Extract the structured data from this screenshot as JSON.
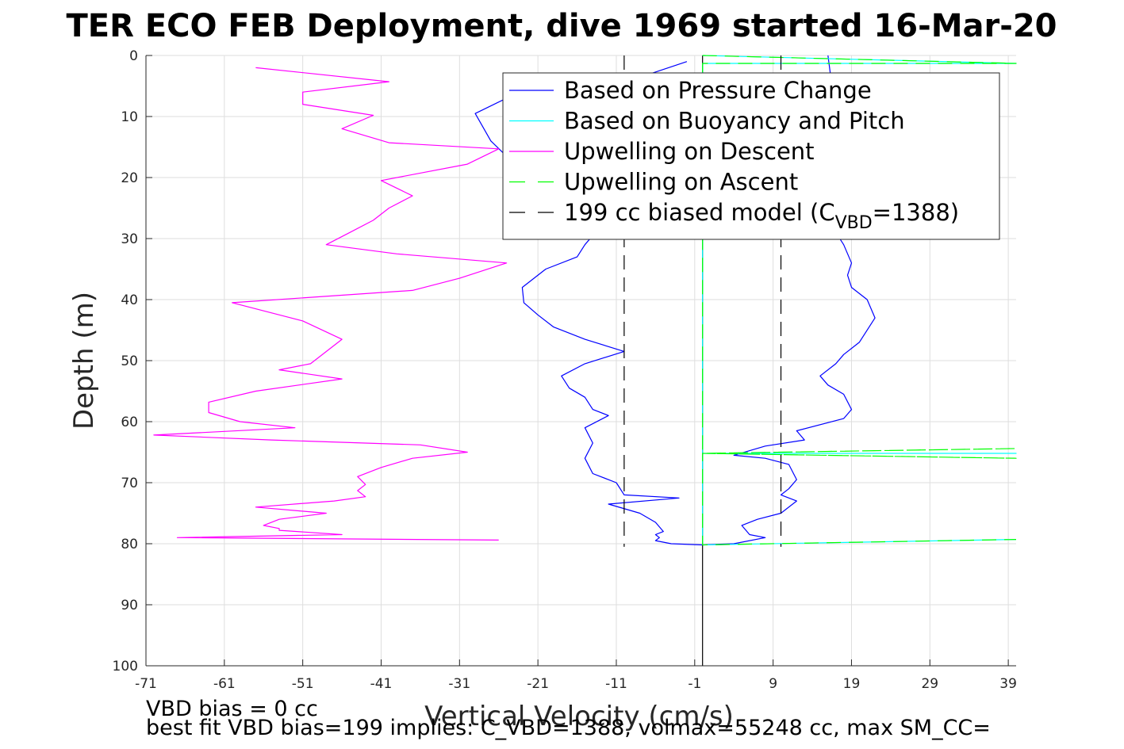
{
  "chart_data": {
    "type": "line",
    "title": "TER ECO FEB Deployment, dive 1969 started 16-Mar-20",
    "xlabel": "Vertical Velocity (cm/s)",
    "ylabel": "Depth (m)",
    "xlim": [
      -71,
      40
    ],
    "ylim": [
      0,
      100
    ],
    "y_reversed": true,
    "grid": true,
    "xticks": [
      -71,
      -61,
      -51,
      -41,
      -31,
      -21,
      -11,
      -1,
      9,
      19,
      29,
      39
    ],
    "yticks": [
      0,
      10,
      20,
      30,
      40,
      50,
      60,
      70,
      80,
      90,
      100
    ],
    "xtick_labels": [
      "-71",
      "-61",
      "-51",
      "-41",
      "-31",
      "-21",
      "-11",
      "-1",
      "9",
      "19",
      "29",
      "39"
    ],
    "ytick_labels": [
      "0",
      "10",
      "20",
      "30",
      "40",
      "50",
      "60",
      "70",
      "80",
      "90",
      "100"
    ],
    "legend_position": "top-right",
    "series": [
      {
        "name": "Based on Pressure Change",
        "color": "#0000ff",
        "style": "solid",
        "points": [
          [
            -2,
            1
          ],
          [
            -9,
            4
          ],
          [
            -18,
            5
          ],
          [
            -20,
            6
          ],
          [
            -25,
            7
          ],
          [
            -29,
            9.5
          ],
          [
            -27,
            14
          ],
          [
            -25,
            16.5
          ],
          [
            -24,
            18
          ],
          [
            -22,
            21
          ],
          [
            -20,
            24
          ],
          [
            -17,
            27
          ],
          [
            -14,
            29.5
          ],
          [
            -15,
            31
          ],
          [
            -16,
            33
          ],
          [
            -20,
            35
          ],
          [
            -23,
            38
          ],
          [
            -22.8,
            40.5
          ],
          [
            -21,
            42.5
          ],
          [
            -19,
            44.5
          ],
          [
            -15,
            46.5
          ],
          [
            -10,
            48.5
          ],
          [
            -15,
            50.5
          ],
          [
            -18,
            52.5
          ],
          [
            -17,
            54.5
          ],
          [
            -15,
            56
          ],
          [
            -14,
            58
          ],
          [
            -12,
            59
          ],
          [
            -15,
            61
          ],
          [
            -14,
            63.5
          ],
          [
            -15,
            66
          ],
          [
            -14,
            68.5
          ],
          [
            -11,
            70
          ],
          [
            -10,
            72
          ],
          [
            -3,
            72.5
          ],
          [
            -12,
            73.5
          ],
          [
            -8,
            75
          ],
          [
            -6,
            76.5
          ],
          [
            -5,
            78
          ],
          [
            -6,
            78.5
          ],
          [
            -5.5,
            79
          ],
          [
            -6,
            79.5
          ],
          [
            -4,
            80
          ],
          [
            0,
            80.2
          ],
          [
            4,
            80
          ],
          [
            8,
            79
          ],
          [
            6,
            78.5
          ],
          [
            5,
            77
          ],
          [
            7,
            76
          ],
          [
            10,
            75
          ],
          [
            12,
            73
          ],
          [
            10,
            72
          ],
          [
            11,
            71
          ],
          [
            12,
            69.5
          ],
          [
            11,
            67
          ],
          [
            8,
            66
          ],
          [
            4,
            65.5
          ],
          [
            8,
            64
          ],
          [
            13,
            63
          ],
          [
            12,
            61.5
          ],
          [
            18,
            59.5
          ],
          [
            19,
            58
          ],
          [
            18,
            55.5
          ],
          [
            16,
            54
          ],
          [
            15,
            52.5
          ],
          [
            17,
            50.5
          ],
          [
            18,
            49
          ],
          [
            20,
            47
          ],
          [
            22,
            43
          ],
          [
            21,
            40
          ],
          [
            19,
            38
          ],
          [
            18.5,
            36
          ],
          [
            19,
            34
          ],
          [
            18,
            31
          ],
          [
            17,
            29
          ],
          [
            16,
            25
          ],
          [
            15,
            20
          ],
          [
            15,
            15
          ],
          [
            16,
            10
          ],
          [
            16.5,
            5
          ],
          [
            16,
            0
          ]
        ]
      },
      {
        "name": "Based on Buoyancy and Pitch",
        "color": "#00ffff",
        "style": "solid",
        "points": [
          [
            0,
            0
          ],
          [
            40,
            1.3
          ],
          [
            0,
            1.3
          ],
          [
            0,
            65.2
          ],
          [
            40,
            65.2
          ],
          [
            0,
            65.2
          ],
          [
            0,
            80.2
          ],
          [
            40,
            79.3
          ]
        ]
      },
      {
        "name": "Upwelling on Descent",
        "color": "#ff00ff",
        "style": "solid",
        "points": [
          [
            -57,
            2
          ],
          [
            -40,
            4.3
          ],
          [
            -51,
            6
          ],
          [
            -51,
            8
          ],
          [
            -42,
            9.8
          ],
          [
            -46,
            12
          ],
          [
            -40,
            14.3
          ],
          [
            -26,
            15.3
          ],
          [
            -30,
            17.8
          ],
          [
            -41,
            20.5
          ],
          [
            -37,
            23
          ],
          [
            -40,
            25
          ],
          [
            -42,
            27
          ],
          [
            -45,
            29
          ],
          [
            -48,
            31
          ],
          [
            -39,
            32.5
          ],
          [
            -25,
            34
          ],
          [
            -31,
            36.5
          ],
          [
            -37,
            38.5
          ],
          [
            -60,
            40.5
          ],
          [
            -51,
            43.5
          ],
          [
            -46,
            46.5
          ],
          [
            -50,
            50.5
          ],
          [
            -54,
            51.5
          ],
          [
            -46,
            53
          ],
          [
            -57,
            55
          ],
          [
            -63,
            56.8
          ],
          [
            -63,
            58.5
          ],
          [
            -59,
            60
          ],
          [
            -52,
            61
          ],
          [
            -70,
            62.2
          ],
          [
            -55,
            63
          ],
          [
            -36,
            63.8
          ],
          [
            -30,
            65
          ],
          [
            -37,
            66
          ],
          [
            -41,
            67.5
          ],
          [
            -44,
            69
          ],
          [
            -43,
            70.3
          ],
          [
            -44,
            71.3
          ],
          [
            -43,
            72.3
          ],
          [
            -47,
            73
          ],
          [
            -57,
            74
          ],
          [
            -48,
            75
          ],
          [
            -54,
            76
          ],
          [
            -56,
            77
          ],
          [
            -54,
            77.5
          ],
          [
            -54,
            77.8
          ],
          [
            -46,
            78.5
          ],
          [
            -67,
            79
          ],
          [
            -26,
            79.4
          ]
        ]
      },
      {
        "name": "Upwelling on Ascent",
        "color": "#00ff00",
        "style": "dashed",
        "points": [
          [
            0,
            0
          ],
          [
            40,
            1.3
          ],
          [
            0,
            1.3
          ],
          [
            0,
            65.2
          ],
          [
            40,
            64.4
          ],
          [
            0,
            65.2
          ],
          [
            40,
            66
          ],
          [
            0,
            65.2
          ],
          [
            0,
            80.2
          ],
          [
            40,
            79.3
          ]
        ]
      },
      {
        "name": "199 cc biased model (C_VBD=1388)",
        "legend_main": "199 cc biased model (C",
        "legend_sub": "VBD",
        "legend_tail": "=1388)",
        "color": "#000000",
        "style": "dashed",
        "lines_x": [
          -10,
          10
        ]
      }
    ],
    "zero_line": {
      "x": 0,
      "color": "#000000"
    },
    "annotations": {
      "note1": "VBD bias = 0 cc",
      "note2": "best fit VBD bias=199 implies: C_VBD=1388, volmax=55248 cc, max SM_CC="
    }
  }
}
